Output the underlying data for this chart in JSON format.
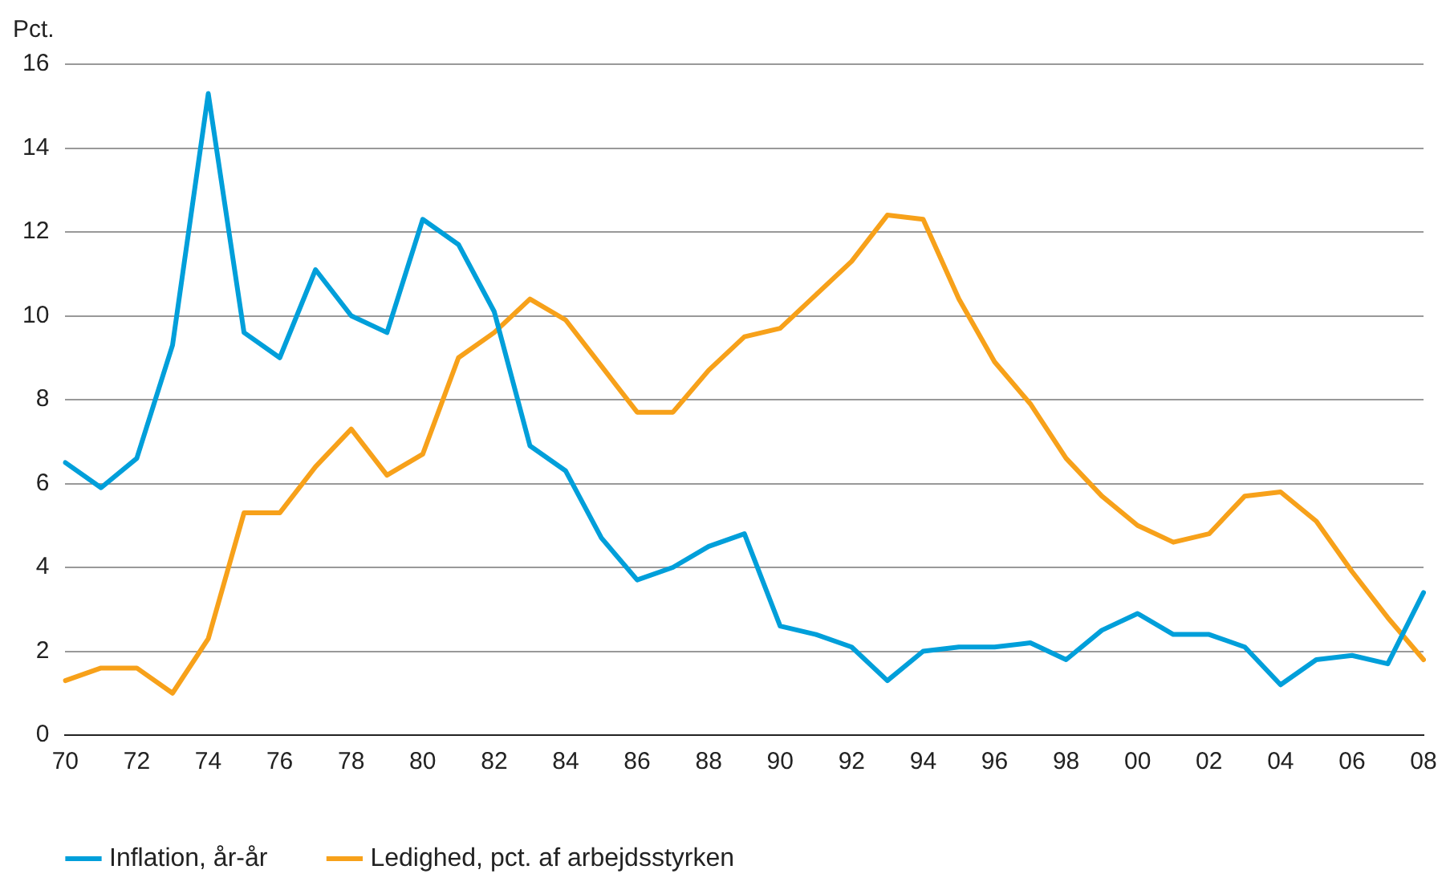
{
  "chart_data": {
    "type": "line",
    "ylabel": "Pct.",
    "categories": [
      "70",
      null,
      "72",
      null,
      "74",
      null,
      "76",
      null,
      "78",
      null,
      "80",
      null,
      "82",
      null,
      "84",
      null,
      "86",
      null,
      "88",
      null,
      "90",
      null,
      "92",
      null,
      "94",
      null,
      "96",
      null,
      "98",
      null,
      "00",
      null,
      "02",
      null,
      "04",
      null,
      "06",
      null,
      "08"
    ],
    "series": [
      {
        "name": "Inflation, år-år",
        "color": "#009fda",
        "values": [
          6.5,
          5.9,
          6.6,
          9.3,
          15.3,
          9.6,
          9.0,
          11.1,
          10.0,
          9.6,
          12.3,
          11.7,
          10.1,
          6.9,
          6.3,
          4.7,
          3.7,
          4.0,
          4.5,
          4.8,
          2.6,
          2.4,
          2.1,
          1.3,
          2.0,
          2.1,
          2.1,
          2.2,
          1.8,
          2.5,
          2.9,
          2.4,
          2.4,
          2.1,
          1.2,
          1.8,
          1.9,
          1.7,
          3.4
        ]
      },
      {
        "name": "Ledighed, pct. af arbejdsstyrken",
        "color": "#f7a11a",
        "values": [
          1.3,
          1.6,
          1.6,
          1.0,
          2.3,
          5.3,
          5.3,
          6.4,
          7.3,
          6.2,
          6.7,
          9.0,
          9.6,
          10.4,
          9.9,
          8.8,
          7.7,
          7.7,
          8.7,
          9.5,
          9.7,
          10.5,
          11.3,
          12.4,
          12.3,
          10.4,
          8.9,
          7.9,
          6.6,
          5.7,
          5.0,
          4.6,
          4.8,
          5.7,
          5.8,
          5.1,
          3.9,
          2.8,
          1.8
        ]
      }
    ],
    "ylim": [
      0,
      16
    ],
    "yticks": [
      0,
      2,
      4,
      6,
      8,
      10,
      12,
      14,
      16
    ],
    "grid": "y",
    "legend": "bottom",
    "marker": "none",
    "line_style": "solid"
  }
}
